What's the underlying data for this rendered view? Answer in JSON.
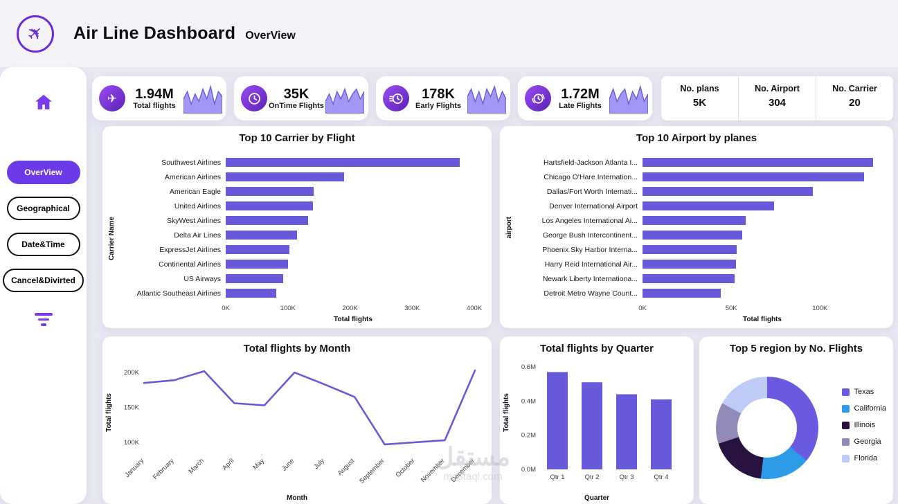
{
  "header": {
    "title": "Air Line Dashboard",
    "subtitle": "OverView"
  },
  "sidebar": {
    "items": [
      {
        "label": "OverView",
        "active": true
      },
      {
        "label": "Geographical",
        "active": false
      },
      {
        "label": "Date&Time",
        "active": false
      },
      {
        "label": "Cancel&Divirted",
        "active": false
      }
    ]
  },
  "kpis": [
    {
      "icon": "plane-icon",
      "value": "1.94M",
      "label": "Total flights",
      "spark": [
        5,
        8,
        3,
        7,
        4,
        9,
        5,
        10,
        3,
        8,
        6
      ]
    },
    {
      "icon": "ontime-clock-icon",
      "value": "35K",
      "label": "OnTime Flights",
      "spark": [
        4,
        7,
        3,
        8,
        5,
        9,
        4,
        7,
        9,
        5,
        8
      ]
    },
    {
      "icon": "early-flights-icon",
      "value": "178K",
      "label": "Early Flights",
      "spark": [
        6,
        9,
        4,
        8,
        3,
        9,
        6,
        10,
        4,
        8,
        5
      ]
    },
    {
      "icon": "late-flights-icon",
      "value": "1.72M",
      "label": "Late Flights",
      "spark": [
        5,
        9,
        4,
        7,
        9,
        3,
        8,
        5,
        10,
        4,
        7
      ]
    }
  ],
  "stat_cards": [
    {
      "label": "No. plans",
      "value": "5K"
    },
    {
      "label": "No. Airport",
      "value": "304"
    },
    {
      "label": "No. Carrier",
      "value": "20"
    }
  ],
  "colors": {
    "accent": "#6759D9",
    "bar": "#6759D9",
    "spark_fill": "#9D92F2",
    "spark_stroke": "#6A5AE0"
  },
  "watermark": {
    "line1": "مستقل",
    "line2": "mostaql.com"
  },
  "chart_data": [
    {
      "id": "carrier",
      "type": "bar",
      "orientation": "horizontal",
      "title": "Top 10 Carrier by Flight",
      "xlabel": "Total flights",
      "ylabel": "Carrier Name",
      "xlim": [
        0,
        410000
      ],
      "xticks": [
        "0K",
        "100K",
        "200K",
        "300K",
        "400K"
      ],
      "xtick_values": [
        0,
        100000,
        200000,
        300000,
        400000
      ],
      "categories": [
        "Southwest Airlines",
        "American Airlines",
        "American Eagle",
        "United Airlines",
        "SkyWest Airlines",
        "Delta Air Lines",
        "ExpressJet Airlines",
        "Continental Airlines",
        "US Airways",
        "Atlantic Southeast Airlines"
      ],
      "values": [
        377000,
        190000,
        142000,
        140000,
        133000,
        115000,
        103000,
        100000,
        93000,
        81000
      ]
    },
    {
      "id": "airport",
      "type": "bar",
      "orientation": "horizontal",
      "title": "Top 10 Airport by planes",
      "xlabel": "Total flights",
      "ylabel": "airport",
      "xlim": [
        0,
        135000
      ],
      "xticks": [
        "0K",
        "50K",
        "100K"
      ],
      "xtick_values": [
        0,
        50000,
        100000
      ],
      "categories": [
        "Hartsfield-Jackson Atlanta I...",
        "Chicago O'Hare Internation...",
        "Dallas/Fort Worth Internati...",
        "Denver International Airport",
        "Los Angeles International Ai...",
        "George Bush Intercontinent...",
        "Phoenix Sky Harbor Interna...",
        "Harry Reid International Air...",
        "Newark Liberty Internationa...",
        "Detroit Metro Wayne Count..."
      ],
      "values": [
        130000,
        125000,
        96000,
        74000,
        58000,
        56000,
        53000,
        52500,
        52000,
        44000
      ]
    },
    {
      "id": "month",
      "type": "line",
      "title": "Total flights by Month",
      "xlabel": "Month",
      "ylabel": "Total flights",
      "ylim": [
        85000,
        212000
      ],
      "yticks": [
        "100K",
        "150K",
        "200K"
      ],
      "ytick_values": [
        100000,
        150000,
        200000
      ],
      "categories": [
        "January",
        "February",
        "March",
        "April",
        "May",
        "June",
        "July",
        "August",
        "September",
        "October",
        "November",
        "December"
      ],
      "values": [
        185000,
        189000,
        202000,
        156000,
        153000,
        200000,
        183000,
        165000,
        97000,
        100000,
        103000,
        203000
      ]
    },
    {
      "id": "quarter",
      "type": "bar",
      "orientation": "vertical",
      "title": "Total flights by Quarter",
      "xlabel": "Quarter",
      "ylabel": "Total flights",
      "ylim": [
        0,
        600000
      ],
      "yticks": [
        "0.0M",
        "0.2M",
        "0.4M",
        "0.6M"
      ],
      "ytick_values": [
        0,
        200000,
        400000,
        600000
      ],
      "categories": [
        "Qtr 1",
        "Qtr 2",
        "Qtr 3",
        "Qtr 4"
      ],
      "values": [
        570000,
        510000,
        440000,
        410000
      ]
    },
    {
      "id": "region",
      "type": "pie",
      "donut": true,
      "legend_position": "right",
      "title": "Top 5 region by No. Flights",
      "categories": [
        "Texas",
        "California",
        "Illinois",
        "Georgia",
        "Florida"
      ],
      "values": [
        36,
        16,
        18,
        13,
        17
      ],
      "colors": [
        "#6A5AE0",
        "#2E9BE8",
        "#2A1240",
        "#9189B8",
        "#BFCBF7"
      ]
    }
  ]
}
